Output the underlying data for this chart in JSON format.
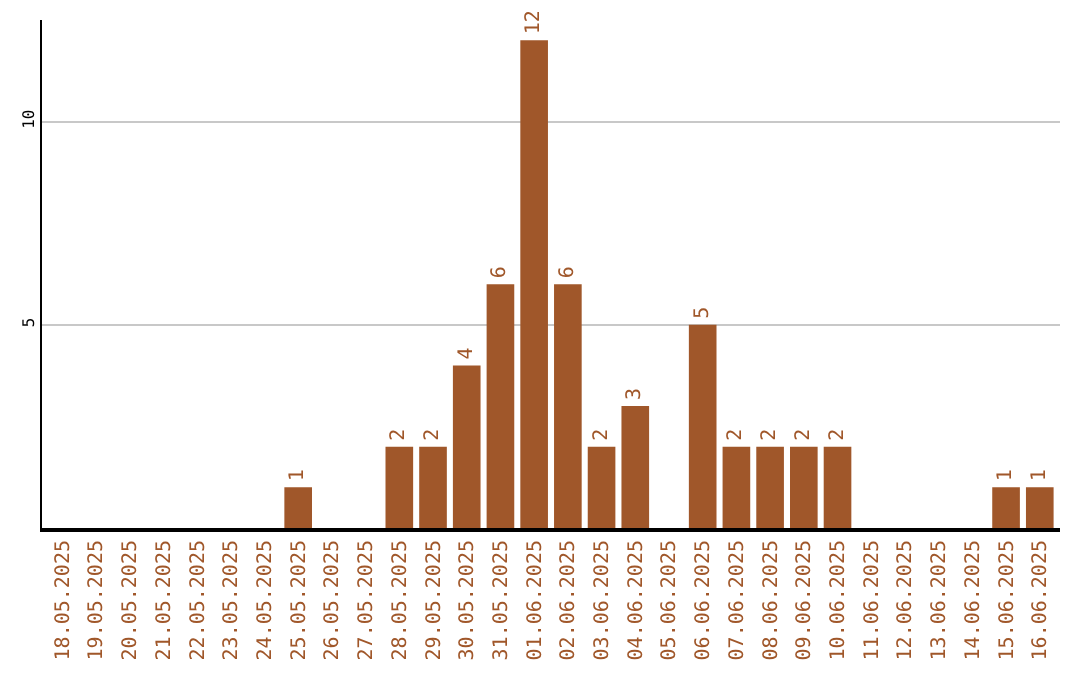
{
  "chart_data": {
    "type": "bar",
    "categories": [
      "18.05.2025",
      "19.05.2025",
      "20.05.2025",
      "21.05.2025",
      "22.05.2025",
      "23.05.2025",
      "24.05.2025",
      "25.05.2025",
      "26.05.2025",
      "27.05.2025",
      "28.05.2025",
      "29.05.2025",
      "30.05.2025",
      "31.05.2025",
      "01.06.2025",
      "02.06.2025",
      "03.06.2025",
      "04.06.2025",
      "05.06.2025",
      "06.06.2025",
      "07.06.2025",
      "08.06.2025",
      "09.06.2025",
      "10.06.2025",
      "11.06.2025",
      "12.06.2025",
      "13.06.2025",
      "14.06.2025",
      "15.06.2025",
      "16.06.2025"
    ],
    "values": [
      0,
      0,
      0,
      0,
      0,
      0,
      0,
      1,
      0,
      0,
      2,
      2,
      4,
      6,
      12,
      6,
      2,
      3,
      0,
      5,
      2,
      2,
      2,
      2,
      0,
      0,
      0,
      0,
      1,
      1
    ],
    "value_labels": [
      null,
      null,
      null,
      null,
      null,
      null,
      null,
      "1",
      null,
      null,
      "2",
      "2",
      "4",
      "6",
      "12",
      "6",
      "2",
      "3",
      null,
      "5",
      "2",
      "2",
      "2",
      "2",
      null,
      null,
      null,
      null,
      "1",
      "1"
    ],
    "color": "#a0572a",
    "ylim": [
      0,
      12.5
    ],
    "yticks": [
      5,
      10
    ],
    "grid": "y",
    "legend": false
  }
}
